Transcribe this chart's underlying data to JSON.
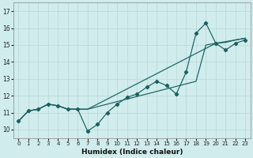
{
  "xlabel": "Humidex (Indice chaleur)",
  "background_color": "#d0ecec",
  "grid_color": "#b8d8d8",
  "line_color": "#1a6060",
  "xlim": [
    -0.5,
    23.5
  ],
  "ylim": [
    9.5,
    17.5
  ],
  "yticks": [
    10,
    11,
    12,
    13,
    14,
    15,
    16,
    17
  ],
  "xticks": [
    0,
    1,
    2,
    3,
    4,
    5,
    6,
    7,
    8,
    9,
    10,
    11,
    12,
    13,
    14,
    15,
    16,
    17,
    18,
    19,
    20,
    21,
    22,
    23
  ],
  "series_markers": [
    10.5,
    11.1,
    11.2,
    11.5,
    11.4,
    11.2,
    11.2,
    9.9,
    10.3,
    11.0,
    11.5,
    11.9,
    12.1,
    12.5,
    12.85,
    12.6,
    12.1,
    13.4,
    15.7,
    16.3,
    15.1,
    14.7,
    15.1,
    15.3
  ],
  "series_line1": [
    10.5,
    11.1,
    11.2,
    11.5,
    11.4,
    11.2,
    11.2,
    11.2,
    11.5,
    11.8,
    12.1,
    12.4,
    12.7,
    13.0,
    13.3,
    13.6,
    13.9,
    14.2,
    14.5,
    14.8,
    15.1,
    15.2,
    15.3,
    15.4
  ],
  "series_line2": [
    10.5,
    11.1,
    11.2,
    11.5,
    11.4,
    11.2,
    11.2,
    11.2,
    11.35,
    11.5,
    11.65,
    11.8,
    11.95,
    12.1,
    12.25,
    12.4,
    12.55,
    12.7,
    12.85,
    15.0,
    15.1,
    15.15,
    15.3,
    15.4
  ]
}
